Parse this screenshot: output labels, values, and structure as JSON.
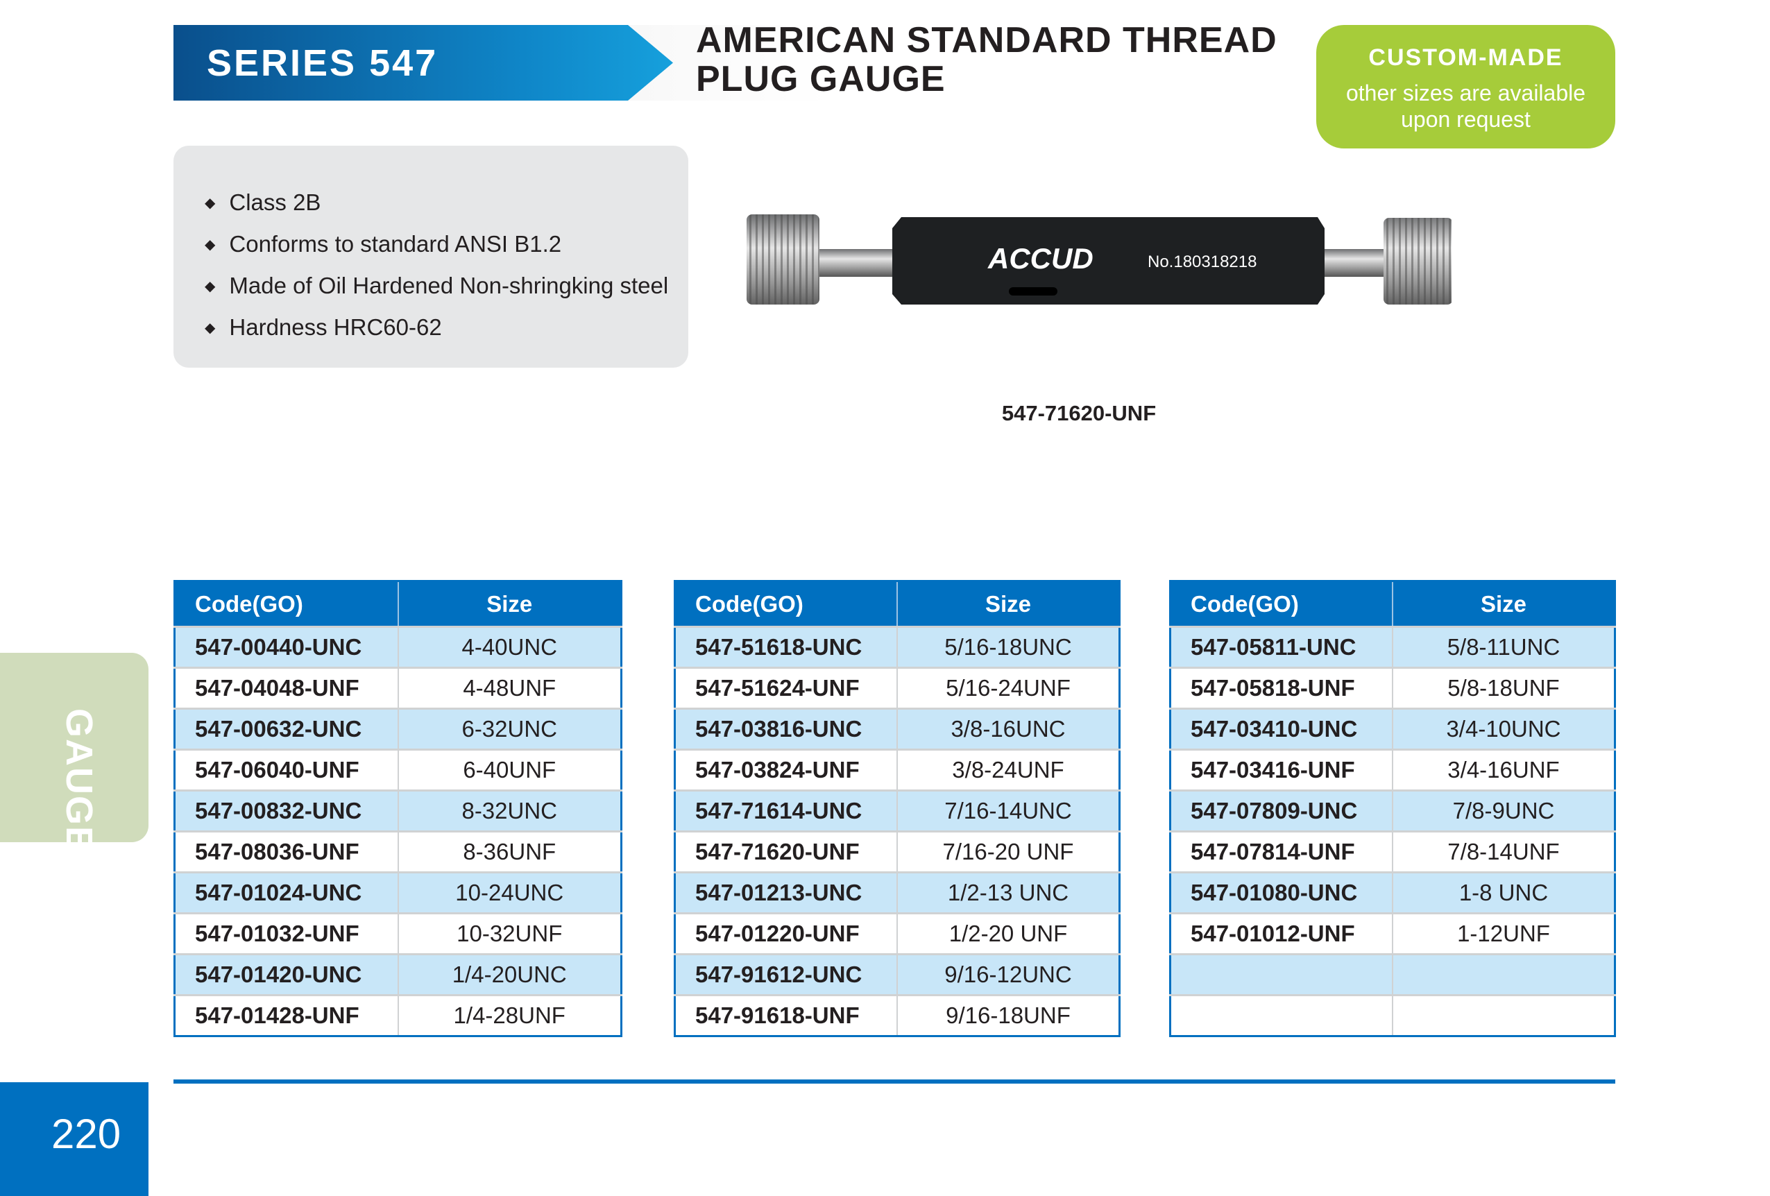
{
  "header": {
    "series": "SERIES 547",
    "title_line1": "AMERICAN STANDARD THREAD",
    "title_line2": "PLUG GAUGE"
  },
  "custom_badge": {
    "heading": "CUSTOM-MADE",
    "line1": "other sizes are available",
    "line2": "upon request"
  },
  "features": [
    "Class 2B",
    "Conforms to standard ANSI B1.2",
    "Made of Oil Hardened Non-shringking steel",
    "Hardness HRC60-62"
  ],
  "product_image": {
    "brand": "ACCUD",
    "serial": "No.180318218",
    "caption": "547-71620-UNF"
  },
  "tables": [
    {
      "headers": [
        "Code(GO)",
        "Size"
      ],
      "rows": [
        [
          "547-00440-UNC",
          "4-40UNC"
        ],
        [
          "547-04048-UNF",
          "4-48UNF"
        ],
        [
          "547-00632-UNC",
          "6-32UNC"
        ],
        [
          "547-06040-UNF",
          "6-40UNF"
        ],
        [
          "547-00832-UNC",
          "8-32UNC"
        ],
        [
          "547-08036-UNF",
          "8-36UNF"
        ],
        [
          "547-01024-UNC",
          "10-24UNC"
        ],
        [
          "547-01032-UNF",
          "10-32UNF"
        ],
        [
          "547-01420-UNC",
          "1/4-20UNC"
        ],
        [
          "547-01428-UNF",
          "1/4-28UNF"
        ]
      ]
    },
    {
      "headers": [
        "Code(GO)",
        "Size"
      ],
      "rows": [
        [
          "547-51618-UNC",
          "5/16-18UNC"
        ],
        [
          "547-51624-UNF",
          "5/16-24UNF"
        ],
        [
          "547-03816-UNC",
          "3/8-16UNC"
        ],
        [
          "547-03824-UNF",
          "3/8-24UNF"
        ],
        [
          "547-71614-UNC",
          "7/16-14UNC"
        ],
        [
          "547-71620-UNF",
          "7/16-20 UNF"
        ],
        [
          "547-01213-UNC",
          "1/2-13 UNC"
        ],
        [
          "547-01220-UNF",
          "1/2-20 UNF"
        ],
        [
          "547-91612-UNC",
          "9/16-12UNC"
        ],
        [
          "547-91618-UNF",
          "9/16-18UNF"
        ]
      ]
    },
    {
      "headers": [
        "Code(GO)",
        "Size"
      ],
      "rows": [
        [
          "547-05811-UNC",
          "5/8-11UNC"
        ],
        [
          "547-05818-UNF",
          "5/8-18UNF"
        ],
        [
          "547-03410-UNC",
          "3/4-10UNC"
        ],
        [
          "547-03416-UNF",
          "3/4-16UNF"
        ],
        [
          "547-07809-UNC",
          "7/8-9UNC"
        ],
        [
          "547-07814-UNF",
          "7/8-14UNF"
        ],
        [
          "547-01080-UNC",
          "1-8 UNC"
        ],
        [
          "547-01012-UNF",
          "1-12UNF"
        ],
        [
          "",
          ""
        ],
        [
          "",
          ""
        ]
      ]
    }
  ],
  "side_tab": "GAUGE",
  "page_number": "220",
  "colors": {
    "brand_blue": "#0070c0",
    "row_alt": "#c8e6f8",
    "custom_green": "#a6cc3a",
    "side_tab": "#d0dcbb"
  }
}
